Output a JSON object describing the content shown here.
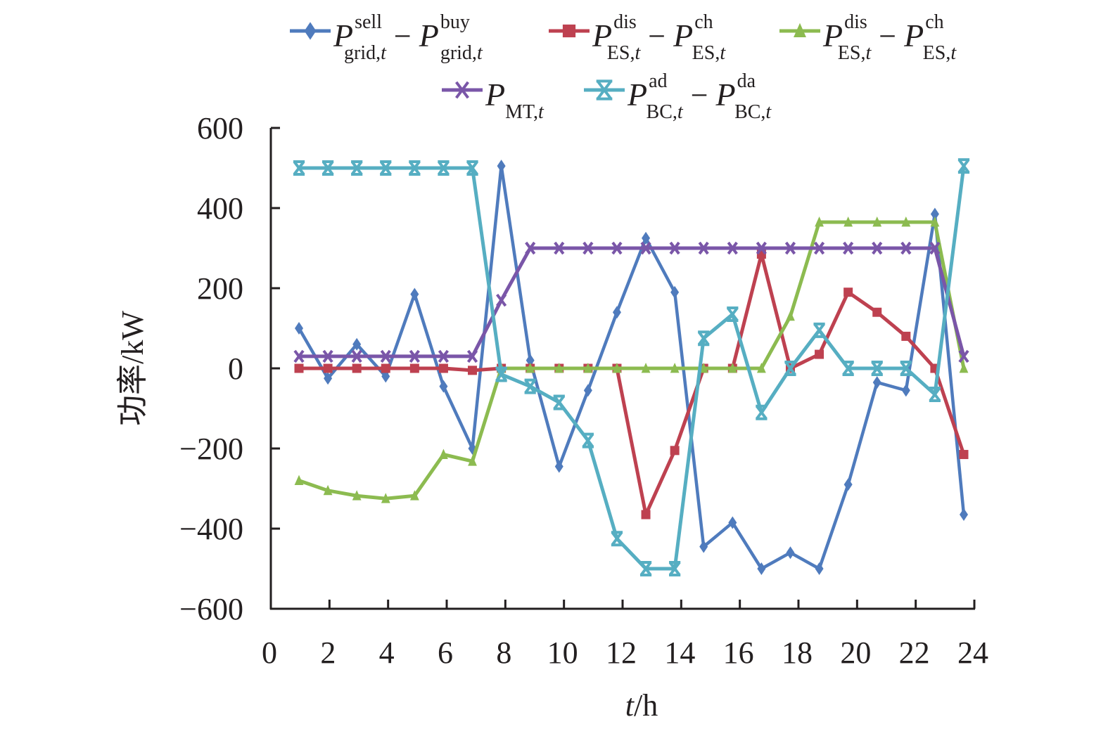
{
  "chart_data": {
    "type": "line",
    "title": "",
    "xlabel": "t/h",
    "xlabel_parts": {
      "var": "t",
      "unit": "/h"
    },
    "ylabel": "功率/kW",
    "xlim": [
      0,
      24
    ],
    "ylim": [
      -600,
      600
    ],
    "x_ticks": [
      "0",
      "2",
      "4",
      "6",
      "8",
      "10",
      "12",
      "14",
      "16",
      "18",
      "20",
      "22",
      "24"
    ],
    "y_ticks": [
      "600",
      "400",
      "200",
      "0",
      "−200",
      "−400",
      "−600"
    ],
    "y_tick_values": [
      600,
      400,
      200,
      0,
      -200,
      -400,
      -600
    ],
    "grid": false,
    "legend_position": "top",
    "x": [
      1,
      2,
      3,
      4,
      5,
      6,
      7,
      8,
      9,
      10,
      11,
      12,
      13,
      14,
      15,
      16,
      17,
      18,
      19,
      20,
      21,
      22,
      23,
      24
    ],
    "series": [
      {
        "name": "P_grid,t^sell − P_grid,t^buy",
        "legend": {
          "base1": "P",
          "sup1": "sell",
          "sub1": "grid,t",
          "op": "−",
          "base2": "P",
          "sup2": "buy",
          "sub2": "grid,t"
        },
        "color": "#4f7bbd",
        "marker": "diamond",
        "values": [
          100,
          -25,
          60,
          -20,
          185,
          -45,
          -200,
          505,
          20,
          -245,
          -55,
          140,
          325,
          190,
          -445,
          -385,
          -500,
          -460,
          -500,
          -290,
          -35,
          -55,
          385,
          -365
        ]
      },
      {
        "name": "P_ES,t^dis − P_ES,t^ch",
        "legend": {
          "base1": "P",
          "sup1": "dis",
          "sub1": "ES,t",
          "op": "−",
          "base2": "P",
          "sup2": "ch",
          "sub2": "ES,t"
        },
        "color": "#be4150",
        "marker": "square",
        "values": [
          0,
          0,
          0,
          0,
          0,
          0,
          -5,
          0,
          0,
          0,
          0,
          0,
          -365,
          -205,
          0,
          0,
          285,
          0,
          35,
          190,
          140,
          80,
          0,
          -215
        ]
      },
      {
        "name": "P_ES,t^dis − P_ES,t^ch",
        "legend": {
          "base1": "P",
          "sup1": "dis",
          "sub1": "ES,t",
          "op": "−",
          "base2": "P",
          "sup2": "ch",
          "sub2": "ES,t"
        },
        "color": "#8cbb50",
        "marker": "triangle",
        "values": [
          -280,
          -305,
          -318,
          -325,
          -318,
          -215,
          -232,
          0,
          0,
          0,
          0,
          0,
          0,
          0,
          0,
          0,
          0,
          130,
          365,
          365,
          365,
          365,
          365,
          0
        ]
      },
      {
        "name": "P_MT,t",
        "legend": {
          "base1": "P",
          "sup1": "",
          "sub1": "MT,t",
          "op": "",
          "base2": "",
          "sup2": "",
          "sub2": ""
        },
        "color": "#7a56a8",
        "marker": "x",
        "values": [
          30,
          30,
          30,
          30,
          30,
          30,
          30,
          170,
          300,
          300,
          300,
          300,
          300,
          300,
          300,
          300,
          300,
          300,
          300,
          300,
          300,
          300,
          300,
          30
        ]
      },
      {
        "name": "P_BC,t^ad − P_BC,t^da",
        "legend": {
          "base1": "P",
          "sup1": "ad",
          "sub1": "BC,t",
          "op": "−",
          "base2": "P",
          "sup2": "da",
          "sub2": "BC,t"
        },
        "color": "#56aec2",
        "marker": "asterisk",
        "values": [
          500,
          500,
          500,
          500,
          500,
          500,
          500,
          -15,
          -45,
          -85,
          -180,
          -425,
          -500,
          -500,
          75,
          135,
          -110,
          0,
          95,
          0,
          0,
          0,
          -65,
          505
        ]
      }
    ]
  }
}
